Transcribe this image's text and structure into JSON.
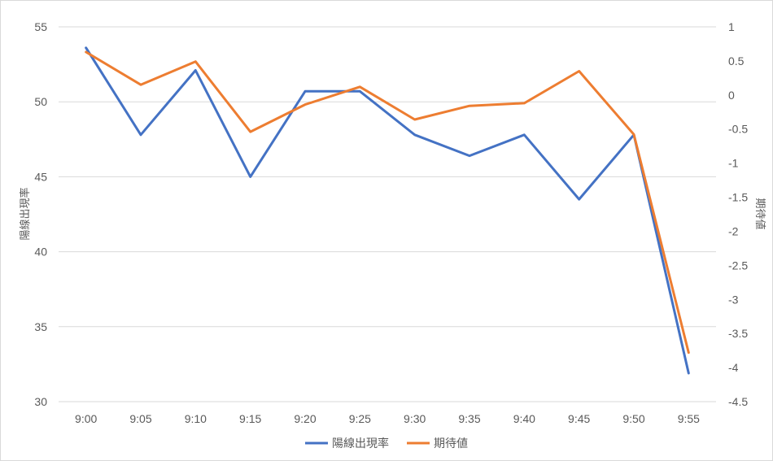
{
  "chart_data": {
    "type": "line",
    "categories": [
      "9:00",
      "9:05",
      "9:10",
      "9:15",
      "9:20",
      "9:25",
      "9:30",
      "9:35",
      "9:40",
      "9:45",
      "9:50",
      "9:55"
    ],
    "series": [
      {
        "name": "陽線出現率",
        "axis": "left",
        "color": "#4472c4",
        "values": [
          53.6,
          47.8,
          52.1,
          45.0,
          50.7,
          50.7,
          47.8,
          46.4,
          47.8,
          43.5,
          47.8,
          31.9
        ]
      },
      {
        "name": "期待値",
        "axis": "right",
        "color": "#ed7d31",
        "values": [
          0.63,
          0.15,
          0.49,
          -0.54,
          -0.14,
          0.12,
          -0.36,
          -0.16,
          -0.12,
          0.35,
          -0.58,
          -3.78
        ]
      }
    ],
    "y_left": {
      "label": "陽線出現率",
      "min": 30,
      "max": 55,
      "ticks": [
        30,
        35,
        40,
        45,
        50,
        55
      ]
    },
    "y_right": {
      "label": "期待値",
      "min": -4.5,
      "max": 1,
      "ticks": [
        "1",
        "0.5",
        "0",
        "-0.5",
        "-1",
        "-1.5",
        "-2",
        "-2.5",
        "-3",
        "-3.5",
        "-4",
        "-4.5"
      ]
    },
    "grid": true,
    "legend": "bottom"
  }
}
